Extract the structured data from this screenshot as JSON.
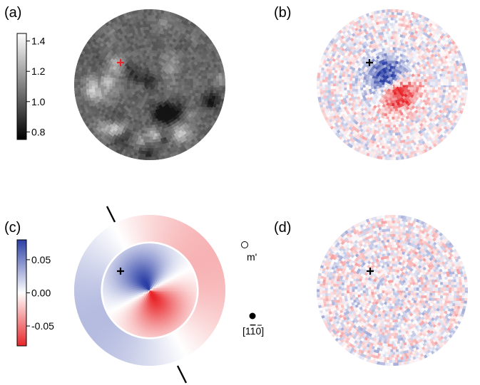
{
  "chart_data": [
    {
      "type": "heatmap",
      "panel_label": "(a)",
      "colormap": "grayscale",
      "colorbar": {
        "ticks": [
          "1.4",
          "1.2",
          "1.0",
          "0.8"
        ],
        "tick_values": [
          1.4,
          1.2,
          1.0,
          0.8
        ],
        "range": [
          0.75,
          1.45
        ]
      },
      "marker": {
        "symbol": "+",
        "color": "#e8262a"
      }
    },
    {
      "type": "heatmap",
      "panel_label": "(b)",
      "colormap": "blue-white-red",
      "marker": {
        "symbol": "+",
        "color": "#000000"
      }
    },
    {
      "type": "heatmap",
      "panel_label": "(c)",
      "colormap": "blue-white-red",
      "colorbar": {
        "ticks": [
          "0.05",
          "0.00",
          "-0.05"
        ],
        "tick_values": [
          0.05,
          0.0,
          -0.05
        ],
        "range": [
          -0.08,
          0.08
        ]
      },
      "marker": {
        "symbol": "+",
        "color": "#000000"
      },
      "legend": [
        {
          "symbol": "open-circle",
          "label": "m'"
        },
        {
          "symbol": "filled-circle",
          "label_prefix": "[1",
          "label_bar": "1",
          "label_suffix": "0]"
        }
      ]
    },
    {
      "type": "heatmap",
      "panel_label": "(d)",
      "colormap": "blue-white-red",
      "marker": {
        "symbol": "+",
        "color": "#000000"
      }
    }
  ],
  "colors": {
    "blue": "#2b3fa6",
    "red": "#e8262a",
    "white": "#ffffff",
    "black": "#000000"
  }
}
